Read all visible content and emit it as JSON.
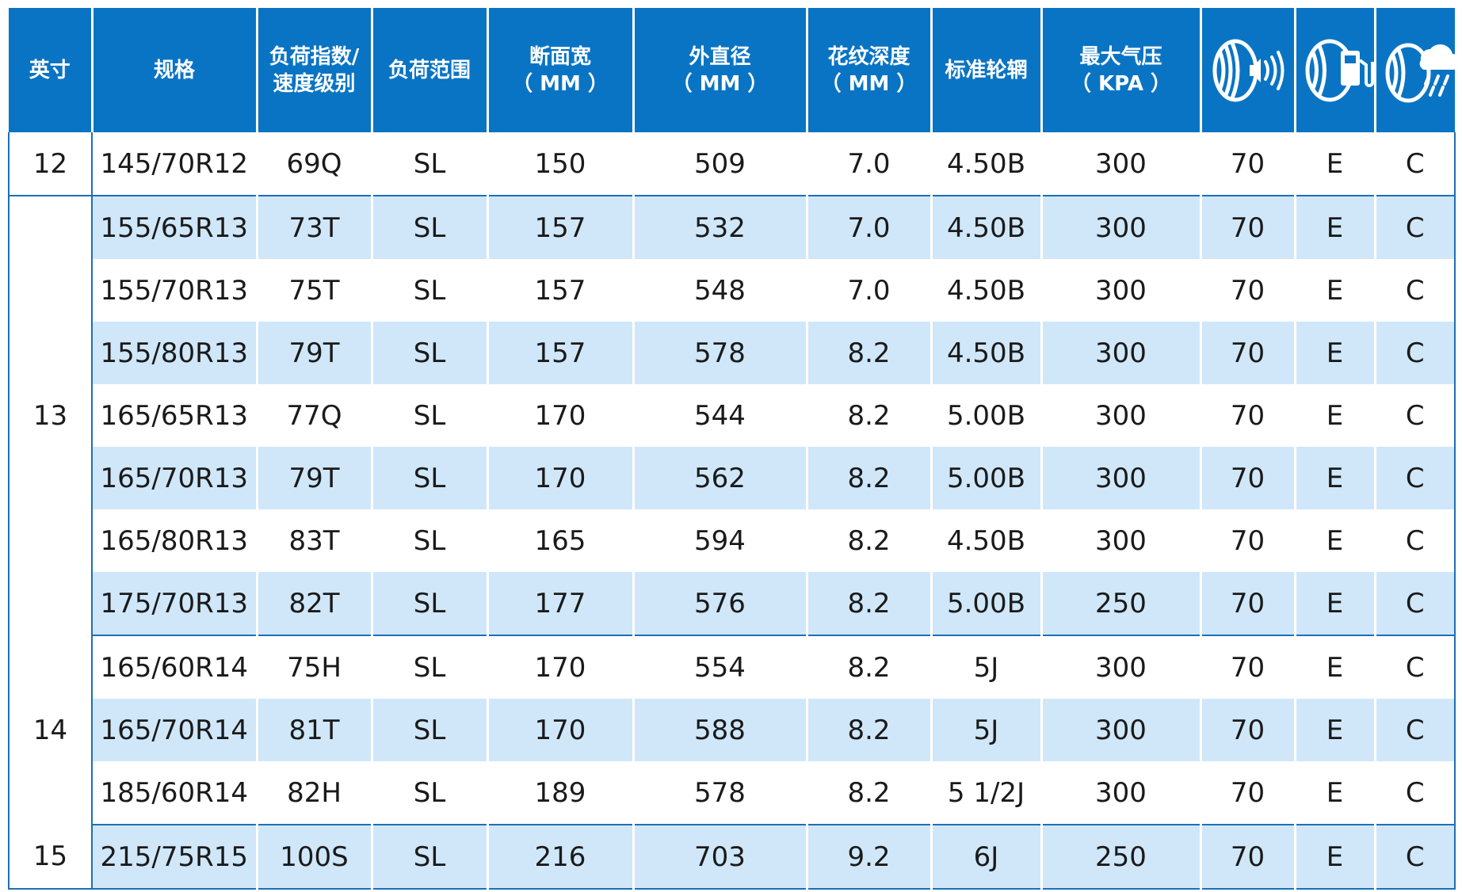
{
  "headers": {
    "inch": "英寸",
    "spec": "规格",
    "load_speed_1": "负荷指数/",
    "load_speed_2": "速度级别",
    "load_range": "负荷范围",
    "section_width": "断面宽",
    "section_width_unit": "（ MM ）",
    "outer_diameter": "外直径",
    "outer_diameter_unit": "（ MM ）",
    "tread_depth": "花纹深度",
    "tread_depth_unit": "（ MM ）",
    "std_rim": "标准轮辋",
    "max_pressure": "最大气压",
    "max_pressure_unit": "（ KPA ）",
    "icons": [
      "tire-noise-icon",
      "tire-fuel-icon",
      "tire-wet-grip-icon"
    ]
  },
  "groups": [
    {
      "inch": "12",
      "rows": [
        {
          "spec": "145/70R12",
          "ls": "69Q",
          "lr": "SL",
          "width": "150",
          "od": "509",
          "depth": "7.0",
          "rim": "4.50B",
          "kpa": "300",
          "noise": "70",
          "fuel": "E",
          "wet": "C"
        }
      ]
    },
    {
      "inch": "13",
      "rows": [
        {
          "spec": "155/65R13",
          "ls": "73T",
          "lr": "SL",
          "width": "157",
          "od": "532",
          "depth": "7.0",
          "rim": "4.50B",
          "kpa": "300",
          "noise": "70",
          "fuel": "E",
          "wet": "C"
        },
        {
          "spec": "155/70R13",
          "ls": "75T",
          "lr": "SL",
          "width": "157",
          "od": "548",
          "depth": "7.0",
          "rim": "4.50B",
          "kpa": "300",
          "noise": "70",
          "fuel": "E",
          "wet": "C"
        },
        {
          "spec": "155/80R13",
          "ls": "79T",
          "lr": "SL",
          "width": "157",
          "od": "578",
          "depth": "8.2",
          "rim": "4.50B",
          "kpa": "300",
          "noise": "70",
          "fuel": "E",
          "wet": "C"
        },
        {
          "spec": "165/65R13",
          "ls": "77Q",
          "lr": "SL",
          "width": "170",
          "od": "544",
          "depth": "8.2",
          "rim": "5.00B",
          "kpa": "300",
          "noise": "70",
          "fuel": "E",
          "wet": "C"
        },
        {
          "spec": "165/70R13",
          "ls": "79T",
          "lr": "SL",
          "width": "170",
          "od": "562",
          "depth": "8.2",
          "rim": "5.00B",
          "kpa": "300",
          "noise": "70",
          "fuel": "E",
          "wet": "C"
        },
        {
          "spec": "165/80R13",
          "ls": "83T",
          "lr": "SL",
          "width": "165",
          "od": "594",
          "depth": "8.2",
          "rim": "4.50B",
          "kpa": "300",
          "noise": "70",
          "fuel": "E",
          "wet": "C"
        },
        {
          "spec": "175/70R13",
          "ls": "82T",
          "lr": "SL",
          "width": "177",
          "od": "576",
          "depth": "8.2",
          "rim": "5.00B",
          "kpa": "250",
          "noise": "70",
          "fuel": "E",
          "wet": "C"
        }
      ]
    },
    {
      "inch": "14",
      "rows": [
        {
          "spec": "165/60R14",
          "ls": "75H",
          "lr": "SL",
          "width": "170",
          "od": "554",
          "depth": "8.2",
          "rim": "5J",
          "kpa": "300",
          "noise": "70",
          "fuel": "E",
          "wet": "C"
        },
        {
          "spec": "165/70R14",
          "ls": "81T",
          "lr": "SL",
          "width": "170",
          "od": "588",
          "depth": "8.2",
          "rim": "5J",
          "kpa": "300",
          "noise": "70",
          "fuel": "E",
          "wet": "C"
        },
        {
          "spec": "185/60R14",
          "ls": "82H",
          "lr": "SL",
          "width": "189",
          "od": "578",
          "depth": "8.2",
          "rim": "5 1/2J",
          "kpa": "300",
          "noise": "70",
          "fuel": "E",
          "wet": "C"
        }
      ]
    },
    {
      "inch": "15",
      "rows": [
        {
          "spec": "215/75R15",
          "ls": "100S",
          "lr": "SL",
          "width": "216",
          "od": "703",
          "depth": "9.2",
          "rim": "6J",
          "kpa": "250",
          "noise": "70",
          "fuel": "E",
          "wet": "C"
        }
      ]
    }
  ],
  "colors": {
    "header": "#0a74c4",
    "stripe": "#cfe7f9",
    "border": "#1e6fb5"
  }
}
